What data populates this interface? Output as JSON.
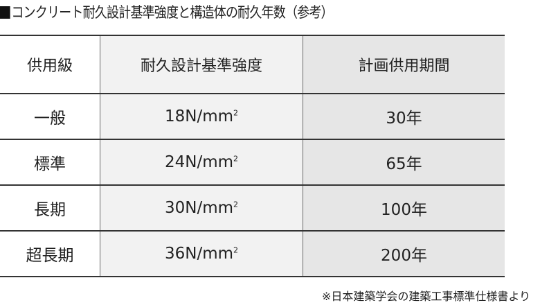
{
  "title": "コンクリート耐久設計基準強度と構造体の耐久年数（参考）",
  "table": {
    "headers": [
      "供用級",
      "耐久設計基準強度",
      "計画供用期間"
    ],
    "rows": [
      {
        "grade": "一般",
        "strength": "18N/mm",
        "period": "30年"
      },
      {
        "grade": "標準",
        "strength": "24N/mm",
        "period": "65年"
      },
      {
        "grade": "長期",
        "strength": "30N/mm",
        "period": "100年"
      },
      {
        "grade": "超長期",
        "strength": "36N/mm",
        "period": "200年"
      }
    ],
    "unit_sup": "2"
  },
  "note": "※日本建築学会の建築工事標準仕様書より"
}
